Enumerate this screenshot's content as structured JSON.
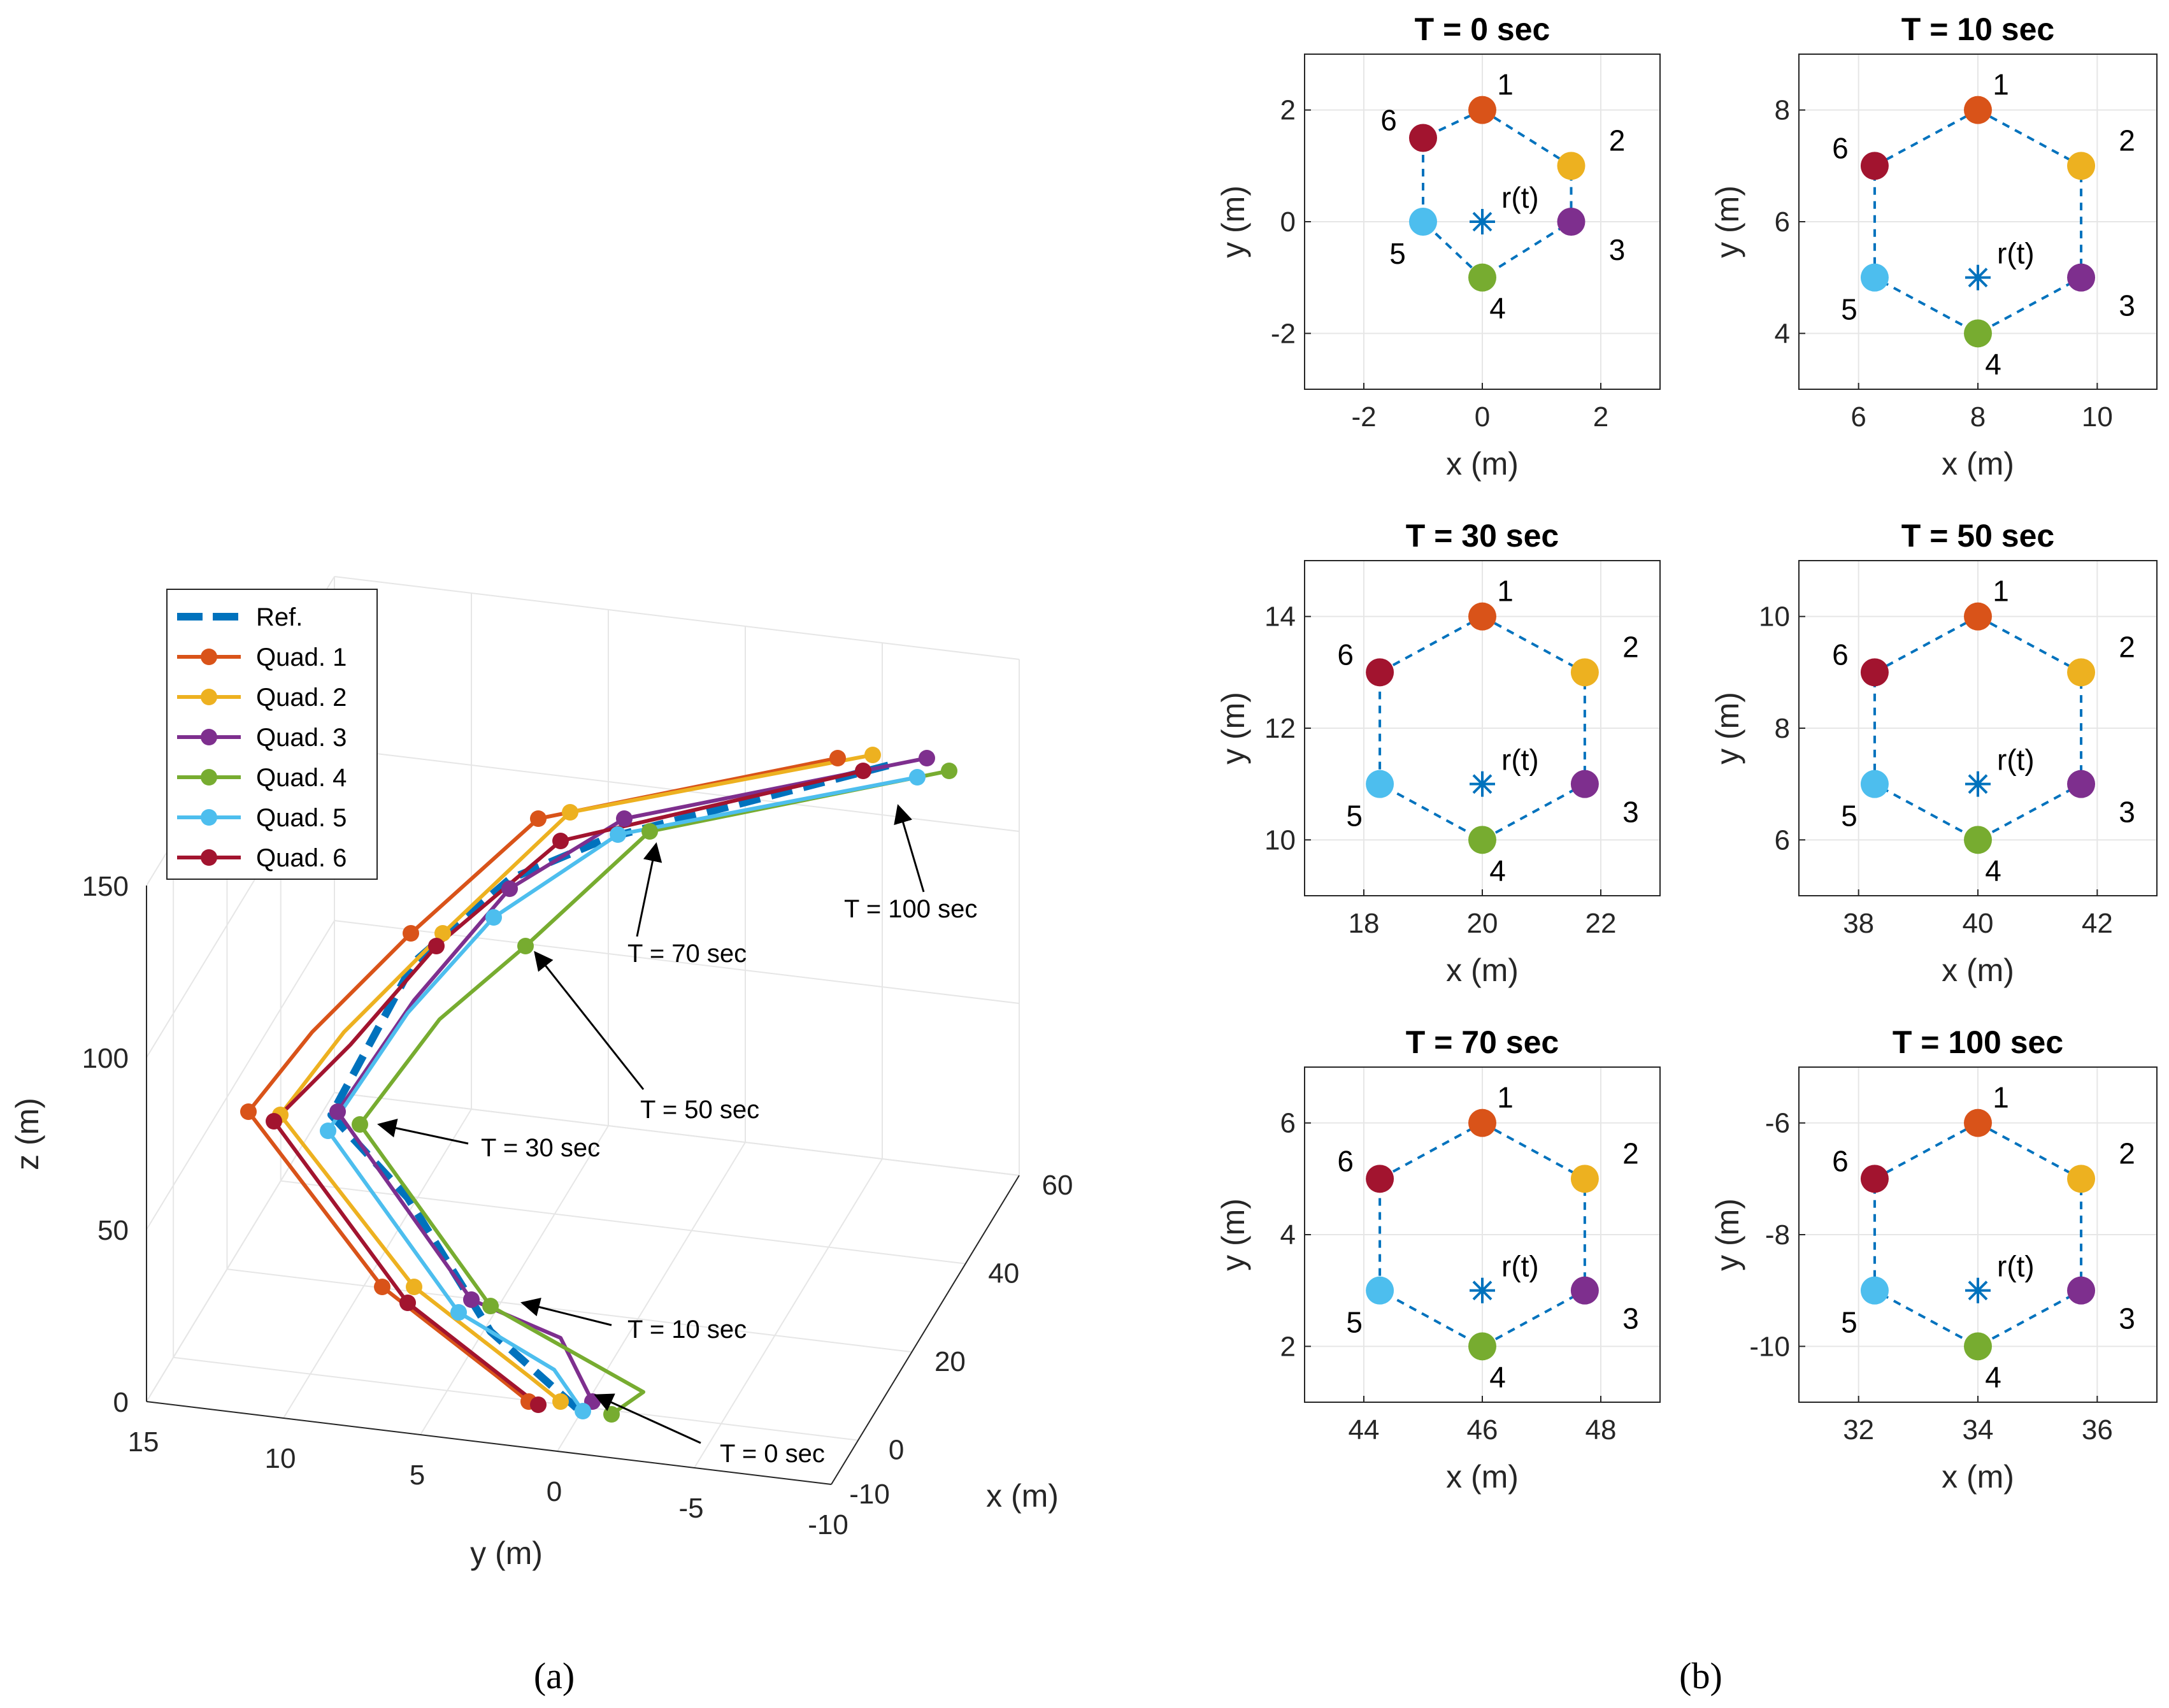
{
  "chart_data": [
    {
      "type": "line",
      "chart": "3d-trajectories",
      "caption": "(a)",
      "xlabel": "x (m)",
      "ylabel": "y (m)",
      "zlabel": "z (m)",
      "xlim": [
        -10,
        60
      ],
      "ylim": [
        -10,
        15
      ],
      "zlim": [
        0,
        150
      ],
      "xticks": [
        "-10",
        "0",
        "20",
        "40",
        "60"
      ],
      "yticks": [
        "15",
        "10",
        "5",
        "0",
        "-5",
        "-10"
      ],
      "zticks": [
        "0",
        "50",
        "100",
        "150"
      ],
      "legend": [
        "Ref.",
        "Quad. 1",
        "Quad. 2",
        "Quad. 3",
        "Quad. 4",
        "Quad. 5",
        "Quad. 6"
      ],
      "colors": [
        "#0072BD",
        "#D95319",
        "#EDB120",
        "#7E2F8E",
        "#77AC30",
        "#4DBEEE",
        "#A2142F"
      ],
      "annotations": [
        "T = 0 sec",
        "T = 10 sec",
        "T = 30 sec",
        "T = 50 sec",
        "T = 70 sec",
        "T = 100 sec"
      ]
    },
    {
      "type": "scatter",
      "chart": "formation-snapshots",
      "caption": "(b)",
      "xlabel": "x (m)",
      "ylabel": "y (m)",
      "center_label": "r(t)",
      "node_labels": [
        "1",
        "2",
        "3",
        "4",
        "5",
        "6"
      ],
      "node_colors": [
        "#D95319",
        "#EDB120",
        "#7E2F8E",
        "#77AC30",
        "#4DBEEE",
        "#A2142F"
      ],
      "panels": [
        {
          "title": "T = 0 sec",
          "center": [
            0,
            0
          ],
          "xlim": [
            -3,
            3
          ],
          "ylim": [
            -3,
            3
          ],
          "xticks": [
            -2,
            0,
            2
          ],
          "yticks": [
            -2,
            0,
            2
          ],
          "xtick_labels": [
            "-2",
            "0",
            "2"
          ],
          "ytick_labels": [
            "-2",
            "0",
            "2"
          ],
          "radius_x": 1.5,
          "radius_y": 1.0,
          "form": "small"
        },
        {
          "title": "T = 10 sec",
          "center": [
            8,
            5
          ],
          "xlim": [
            5,
            11
          ],
          "ylim": [
            3,
            9
          ],
          "xticks": [
            6,
            8,
            10
          ],
          "yticks": [
            4,
            6,
            8
          ],
          "xtick_labels": [
            "6",
            "8",
            "10"
          ],
          "ytick_labels": [
            "4",
            "6",
            "8"
          ],
          "form": "large"
        },
        {
          "title": "T = 30 sec",
          "center": [
            20,
            11
          ],
          "xlim": [
            17,
            23
          ],
          "ylim": [
            9,
            15
          ],
          "xticks": [
            18,
            20,
            22
          ],
          "yticks": [
            10,
            12,
            14
          ],
          "xtick_labels": [
            "18",
            "20",
            "22"
          ],
          "ytick_labels": [
            "10",
            "12",
            "14"
          ],
          "form": "large"
        },
        {
          "title": "T = 50 sec",
          "center": [
            40,
            7
          ],
          "xlim": [
            37,
            43
          ],
          "ylim": [
            5,
            11
          ],
          "xticks": [
            38,
            40,
            42
          ],
          "yticks": [
            6,
            8,
            10
          ],
          "xtick_labels": [
            "38",
            "40",
            "42"
          ],
          "ytick_labels": [
            "6",
            "8",
            "10"
          ],
          "form": "large"
        },
        {
          "title": "T = 70 sec",
          "center": [
            46,
            3
          ],
          "xlim": [
            43,
            49
          ],
          "ylim": [
            1,
            7
          ],
          "xticks": [
            44,
            46,
            48
          ],
          "yticks": [
            2,
            4,
            6
          ],
          "xtick_labels": [
            "44",
            "46",
            "48"
          ],
          "ytick_labels": [
            "2",
            "4",
            "6"
          ],
          "form": "large"
        },
        {
          "title": "T = 100 sec",
          "center": [
            34,
            -9
          ],
          "xlim": [
            31,
            37
          ],
          "ylim": [
            -11,
            -5
          ],
          "xticks": [
            32,
            34,
            36
          ],
          "yticks": [
            -10,
            -8,
            -6
          ],
          "xtick_labels": [
            "32",
            "34",
            "36"
          ],
          "ytick_labels": [
            "-10",
            "-8",
            "-6"
          ],
          "form": "large"
        }
      ]
    }
  ]
}
